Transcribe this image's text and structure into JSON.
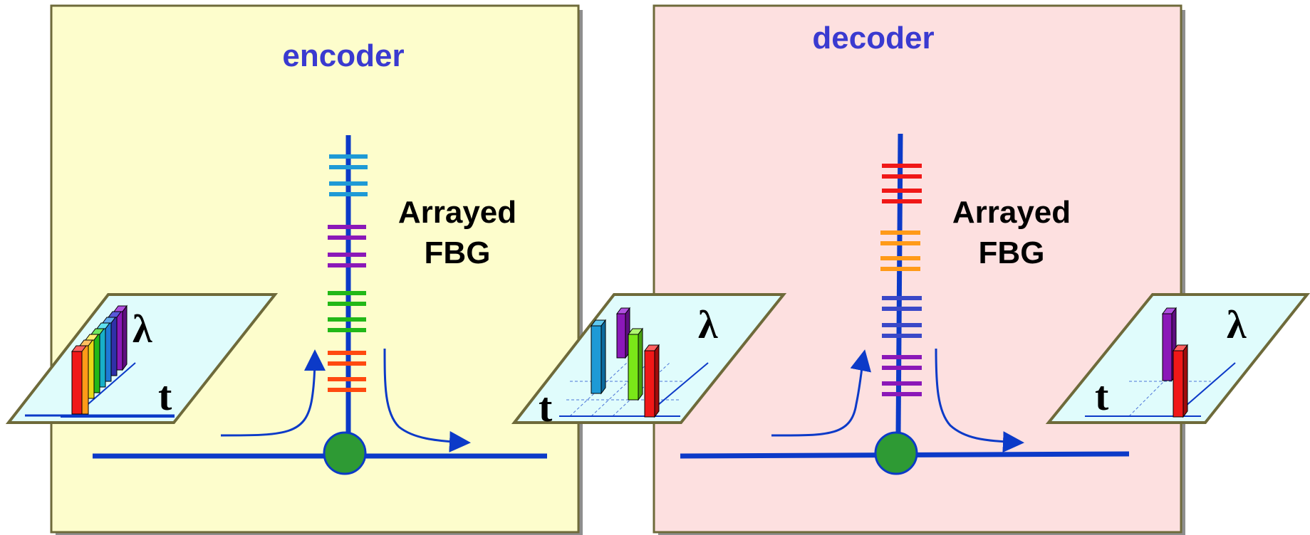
{
  "encoder": {
    "title": "encoder",
    "label_line1": "Arrayed",
    "label_line2": "FBG",
    "panel_color": "#fdfdcc",
    "grating_colors": [
      "#1e9ad6",
      "#8b18b8",
      "#22b818",
      "#ff4a10"
    ]
  },
  "decoder": {
    "title": "decoder",
    "label_line1": "Arrayed",
    "label_line2": "FBG",
    "panel_color": "#fde0e0",
    "grating_colors": [
      "#f01818",
      "#ff9a18",
      "#3a48c8",
      "#8b18b8"
    ]
  },
  "plots": {
    "input": {
      "lambda_label": "λ",
      "t_label": "t"
    },
    "middle": {
      "lambda_label": "λ",
      "t_label": "t"
    },
    "output": {
      "lambda_label": "λ",
      "t_label": "t"
    }
  },
  "colors": {
    "title_text": "#3a3ad0",
    "fiber": "#0c3ac8",
    "coupler": "#2e9a34",
    "plot_fill": "#e0fcfc",
    "panel_border": "#6e6a3a"
  }
}
